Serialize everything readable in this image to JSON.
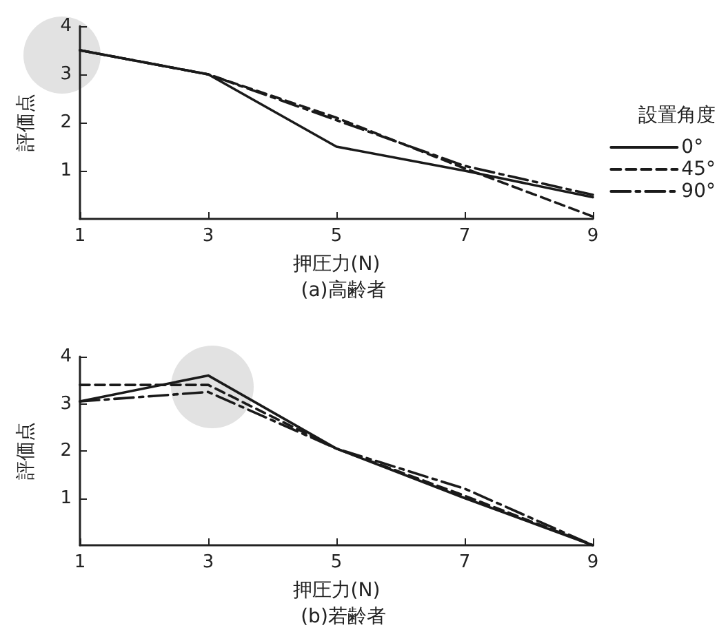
{
  "chart_data": [
    {
      "type": "line",
      "title": "(a)高齢者",
      "xlabel": "押圧力(N)",
      "ylabel": "評価点",
      "legend_title": "設置角度",
      "x": [
        1,
        3,
        5,
        7,
        9
      ],
      "xlim": [
        1,
        9
      ],
      "xticks": [
        1,
        3,
        5,
        7,
        9
      ],
      "ylim": [
        0,
        4
      ],
      "yticks": [
        1,
        2,
        3,
        4
      ],
      "grid": false,
      "legend": "right",
      "marker": "none",
      "series": [
        {
          "name": "0°",
          "color": "#1a1a1a",
          "line_style": "solid",
          "values": [
            3.5,
            3.0,
            1.5,
            1.0,
            0.45
          ]
        },
        {
          "name": "45°",
          "color": "#1a1a1a",
          "line_style": "dashed",
          "values": [
            3.5,
            3.0,
            2.1,
            1.05,
            0.05
          ]
        },
        {
          "name": "90°",
          "color": "#1a1a1a",
          "line_style": "dashdot",
          "values": [
            3.5,
            3.0,
            2.05,
            1.1,
            0.5
          ]
        }
      ]
    },
    {
      "type": "line",
      "title": "(b)若齢者",
      "xlabel": "押圧力(N)",
      "ylabel": "評価点",
      "x": [
        1,
        3,
        5,
        7,
        9
      ],
      "xlim": [
        1,
        9
      ],
      "xticks": [
        1,
        3,
        5,
        7,
        9
      ],
      "ylim": [
        0,
        4
      ],
      "yticks": [
        1,
        2,
        3,
        4
      ],
      "grid": false,
      "legend": false,
      "marker": "none",
      "series": [
        {
          "color": "#1a1a1a",
          "line_style": "solid",
          "values": [
            3.05,
            3.6,
            2.05,
            1.0,
            0.0
          ]
        },
        {
          "color": "#1a1a1a",
          "line_style": "dashed",
          "values": [
            3.4,
            3.4,
            2.05,
            1.05,
            0.0
          ]
        },
        {
          "color": "#1a1a1a",
          "line_style": "dashdot",
          "values": [
            3.05,
            3.25,
            2.05,
            1.2,
            0.0
          ]
        }
      ]
    }
  ]
}
